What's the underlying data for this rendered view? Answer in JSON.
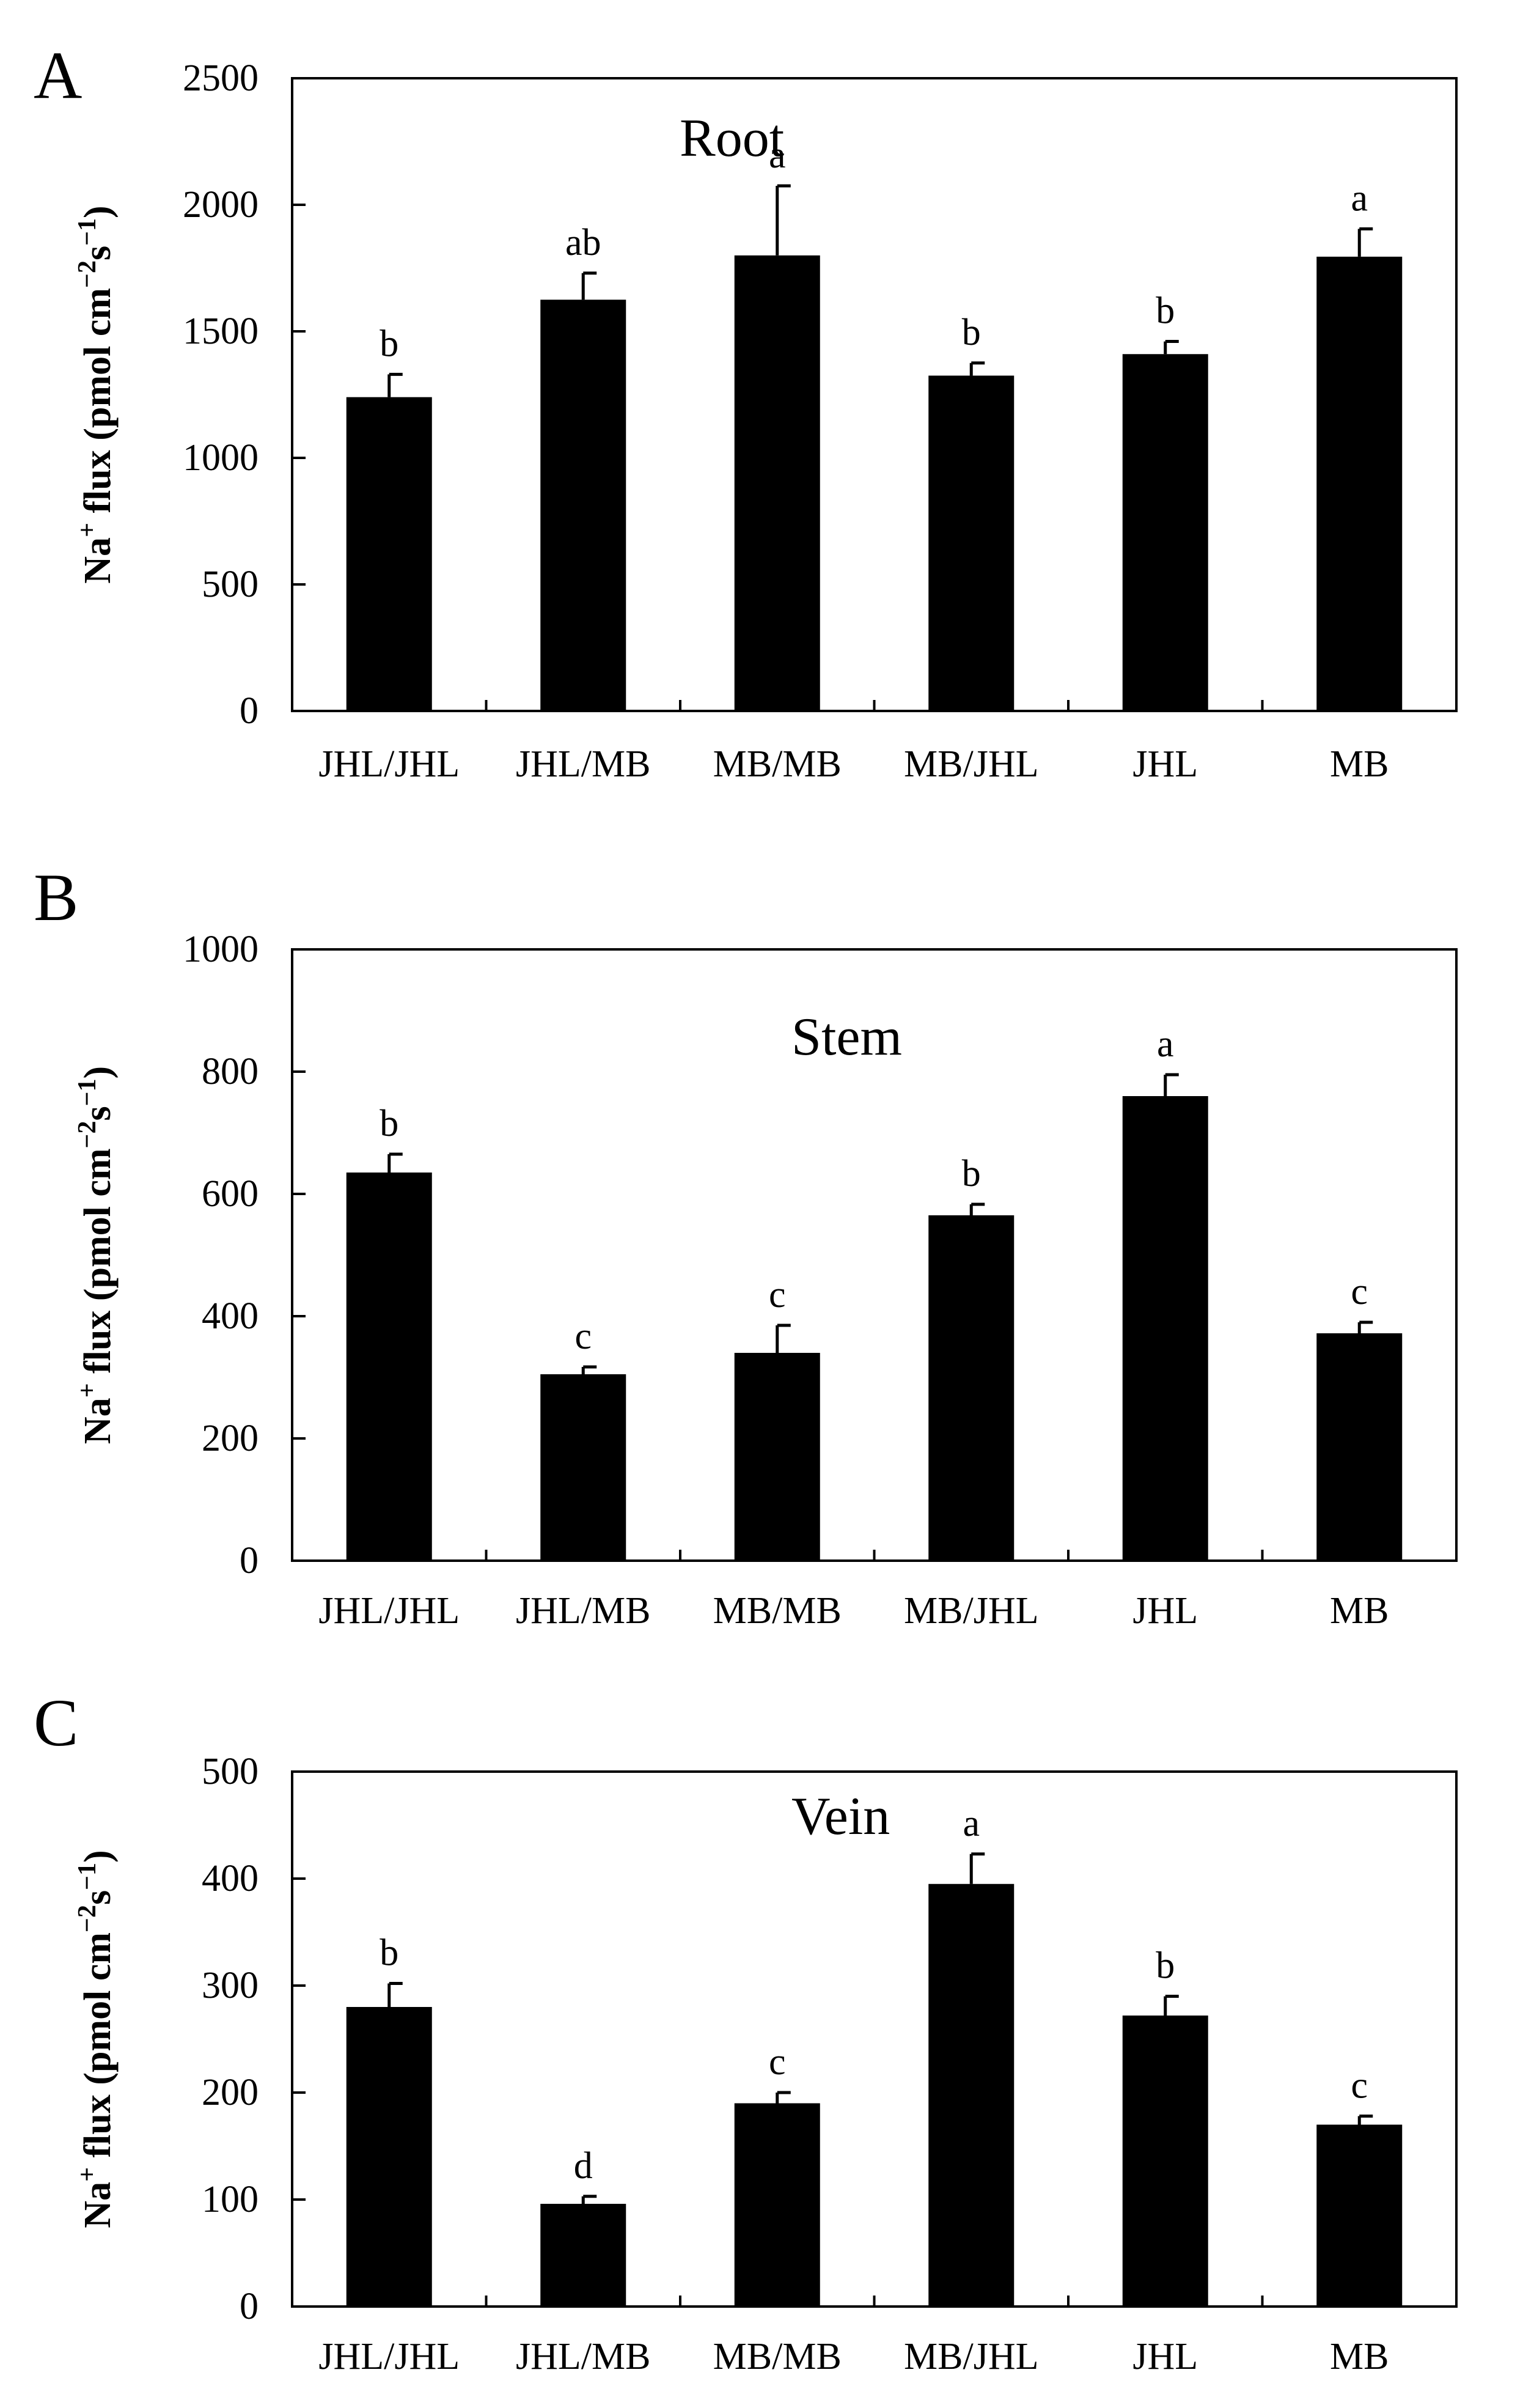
{
  "chart_data": [
    {
      "panel_label": "A",
      "type": "bar",
      "title": "Root",
      "ylabel": {
        "main": "Na",
        "sup": "+",
        "rest": " flux (pmol cm",
        "sup2": "−2",
        "rest2": "s",
        "sup3": "−1",
        "end": ")"
      },
      "ylim": [
        0,
        2500
      ],
      "yticks": [
        "0",
        "500",
        "1000",
        "1500",
        "2000",
        "2500"
      ],
      "categories": [
        "JHL/JHL",
        "JHL/MB",
        "MB/MB",
        "MB/JHL",
        "JHL",
        "MB"
      ],
      "values": [
        1240,
        1625,
        1800,
        1325,
        1410,
        1795
      ],
      "errors": [
        90,
        105,
        275,
        50,
        50,
        110
      ],
      "letters": [
        "b",
        "ab",
        "a",
        "b",
        "b",
        "a"
      ]
    },
    {
      "panel_label": "B",
      "type": "bar",
      "title": "Stem",
      "ylabel": {
        "main": "Na",
        "sup": "+",
        "rest": " flux (pmol cm",
        "sup2": "−2",
        "rest2": "s",
        "sup3": "−1",
        "end": ")"
      },
      "ylim": [
        0,
        1000
      ],
      "yticks": [
        "0",
        "200",
        "400",
        "600",
        "800",
        "1000"
      ],
      "categories": [
        "JHL/JHL",
        "JHL/MB",
        "MB/MB",
        "MB/JHL",
        "JHL",
        "MB"
      ],
      "values": [
        635,
        305,
        340,
        565,
        760,
        372
      ],
      "errors": [
        30,
        12,
        45,
        18,
        35,
        18
      ],
      "letters": [
        "b",
        "c",
        "c",
        "b",
        "a",
        "c"
      ]
    },
    {
      "panel_label": "C",
      "type": "bar",
      "title": "Vein",
      "ylabel": {
        "main": "Na",
        "sup": "+",
        "rest": " flux (pmol cm",
        "sup2": "−2",
        "rest2": "s",
        "sup3": "−1",
        "end": ")"
      },
      "ylim": [
        0,
        500
      ],
      "yticks": [
        "0",
        "100",
        "200",
        "300",
        "400",
        "500"
      ],
      "categories": [
        "JHL/JHL",
        "JHL/MB",
        "MB/MB",
        "MB/JHL",
        "JHL",
        "MB"
      ],
      "values": [
        280,
        96,
        190,
        395,
        272,
        170
      ],
      "errors": [
        22,
        7,
        10,
        28,
        18,
        8
      ],
      "letters": [
        "b",
        "d",
        "c",
        "a",
        "b",
        "c"
      ]
    }
  ]
}
